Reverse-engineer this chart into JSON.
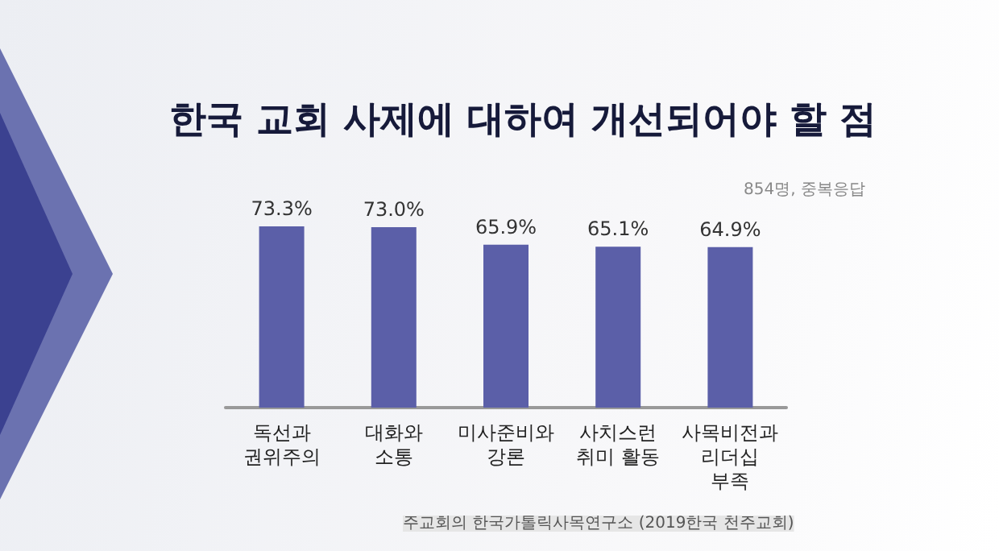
{
  "chart_data": {
    "type": "bar",
    "title": "한국 교회 사제에 대하여 개선되어야 할 점",
    "subtitle": "854명, 중복응답",
    "categories": [
      "독선과\n권위주의",
      "대화와\n소통",
      "미사준비와\n강론",
      "사치스런\n취미 활동",
      "사목비전과\n리더십\n부족"
    ],
    "values": [
      73.3,
      73.0,
      65.9,
      65.1,
      64.9
    ],
    "value_labels": [
      "73.3%",
      "73.0%",
      "65.9%",
      "65.1%",
      "64.9%"
    ],
    "color": "#5b5fa8",
    "tick_labels": "x",
    "annotations": [
      "주교회의 한국가톨릭사목연구소 (2019한국 천주교회)"
    ]
  }
}
